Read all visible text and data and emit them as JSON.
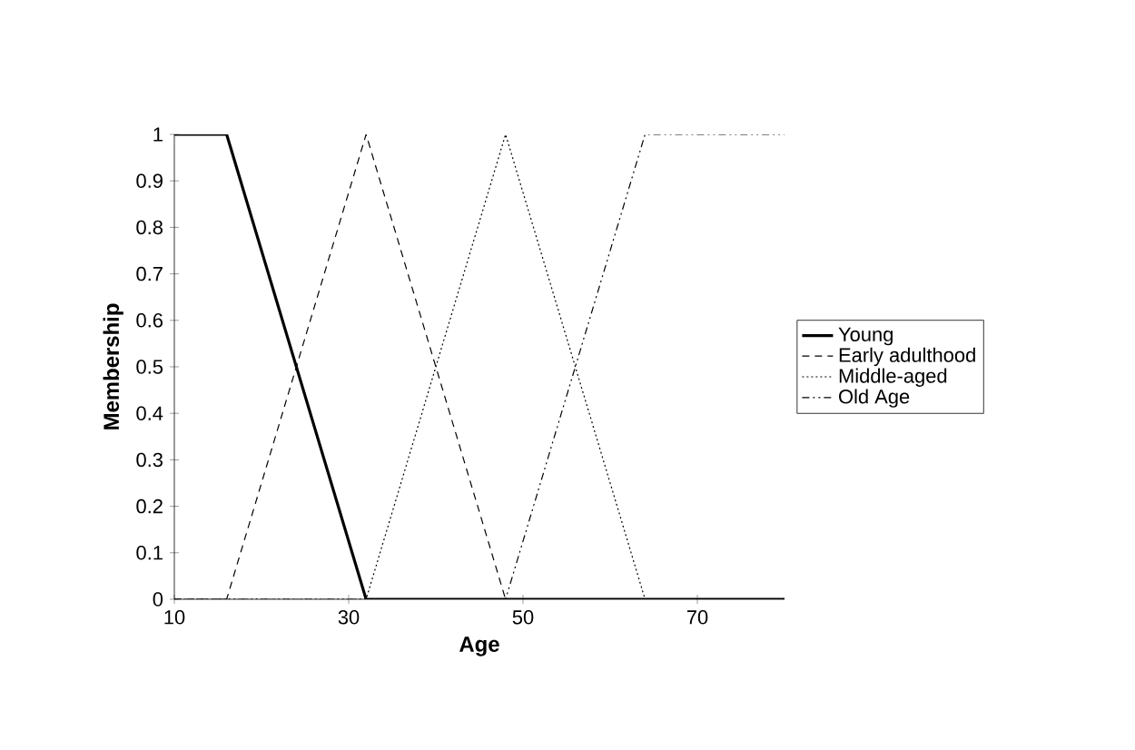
{
  "chart_data": {
    "type": "line",
    "xlabel": "Age",
    "ylabel": "Membership",
    "xlim": [
      10,
      80
    ],
    "xticks": [
      10,
      30,
      50,
      70
    ],
    "ylim": [
      0,
      1
    ],
    "yticks": [
      0,
      0.1,
      0.2,
      0.3,
      0.4,
      0.5,
      0.6,
      0.7,
      0.8,
      0.9,
      1
    ],
    "legend": "right",
    "grid": false,
    "marker": "none",
    "series": [
      {
        "name": "Young",
        "color": "#000000",
        "line_style": "solid",
        "x": [
          10,
          16,
          32,
          80
        ],
        "values": [
          1,
          1,
          0,
          0
        ]
      },
      {
        "name": "Early adulthood",
        "color": "#000000",
        "line_style": "dashed",
        "x": [
          10,
          16,
          32,
          48,
          80
        ],
        "values": [
          0,
          0,
          1,
          0,
          0
        ]
      },
      {
        "name": "Middle-aged",
        "color": "#000000",
        "line_style": "dotted",
        "x": [
          10,
          32,
          48,
          64,
          80
        ],
        "values": [
          0,
          0,
          1,
          0,
          0
        ]
      },
      {
        "name": "Old Age",
        "color": "#000000",
        "line_style": "dashdotdotted",
        "x": [
          10,
          48,
          64,
          80
        ],
        "values": [
          0,
          0,
          1,
          1
        ]
      }
    ]
  }
}
